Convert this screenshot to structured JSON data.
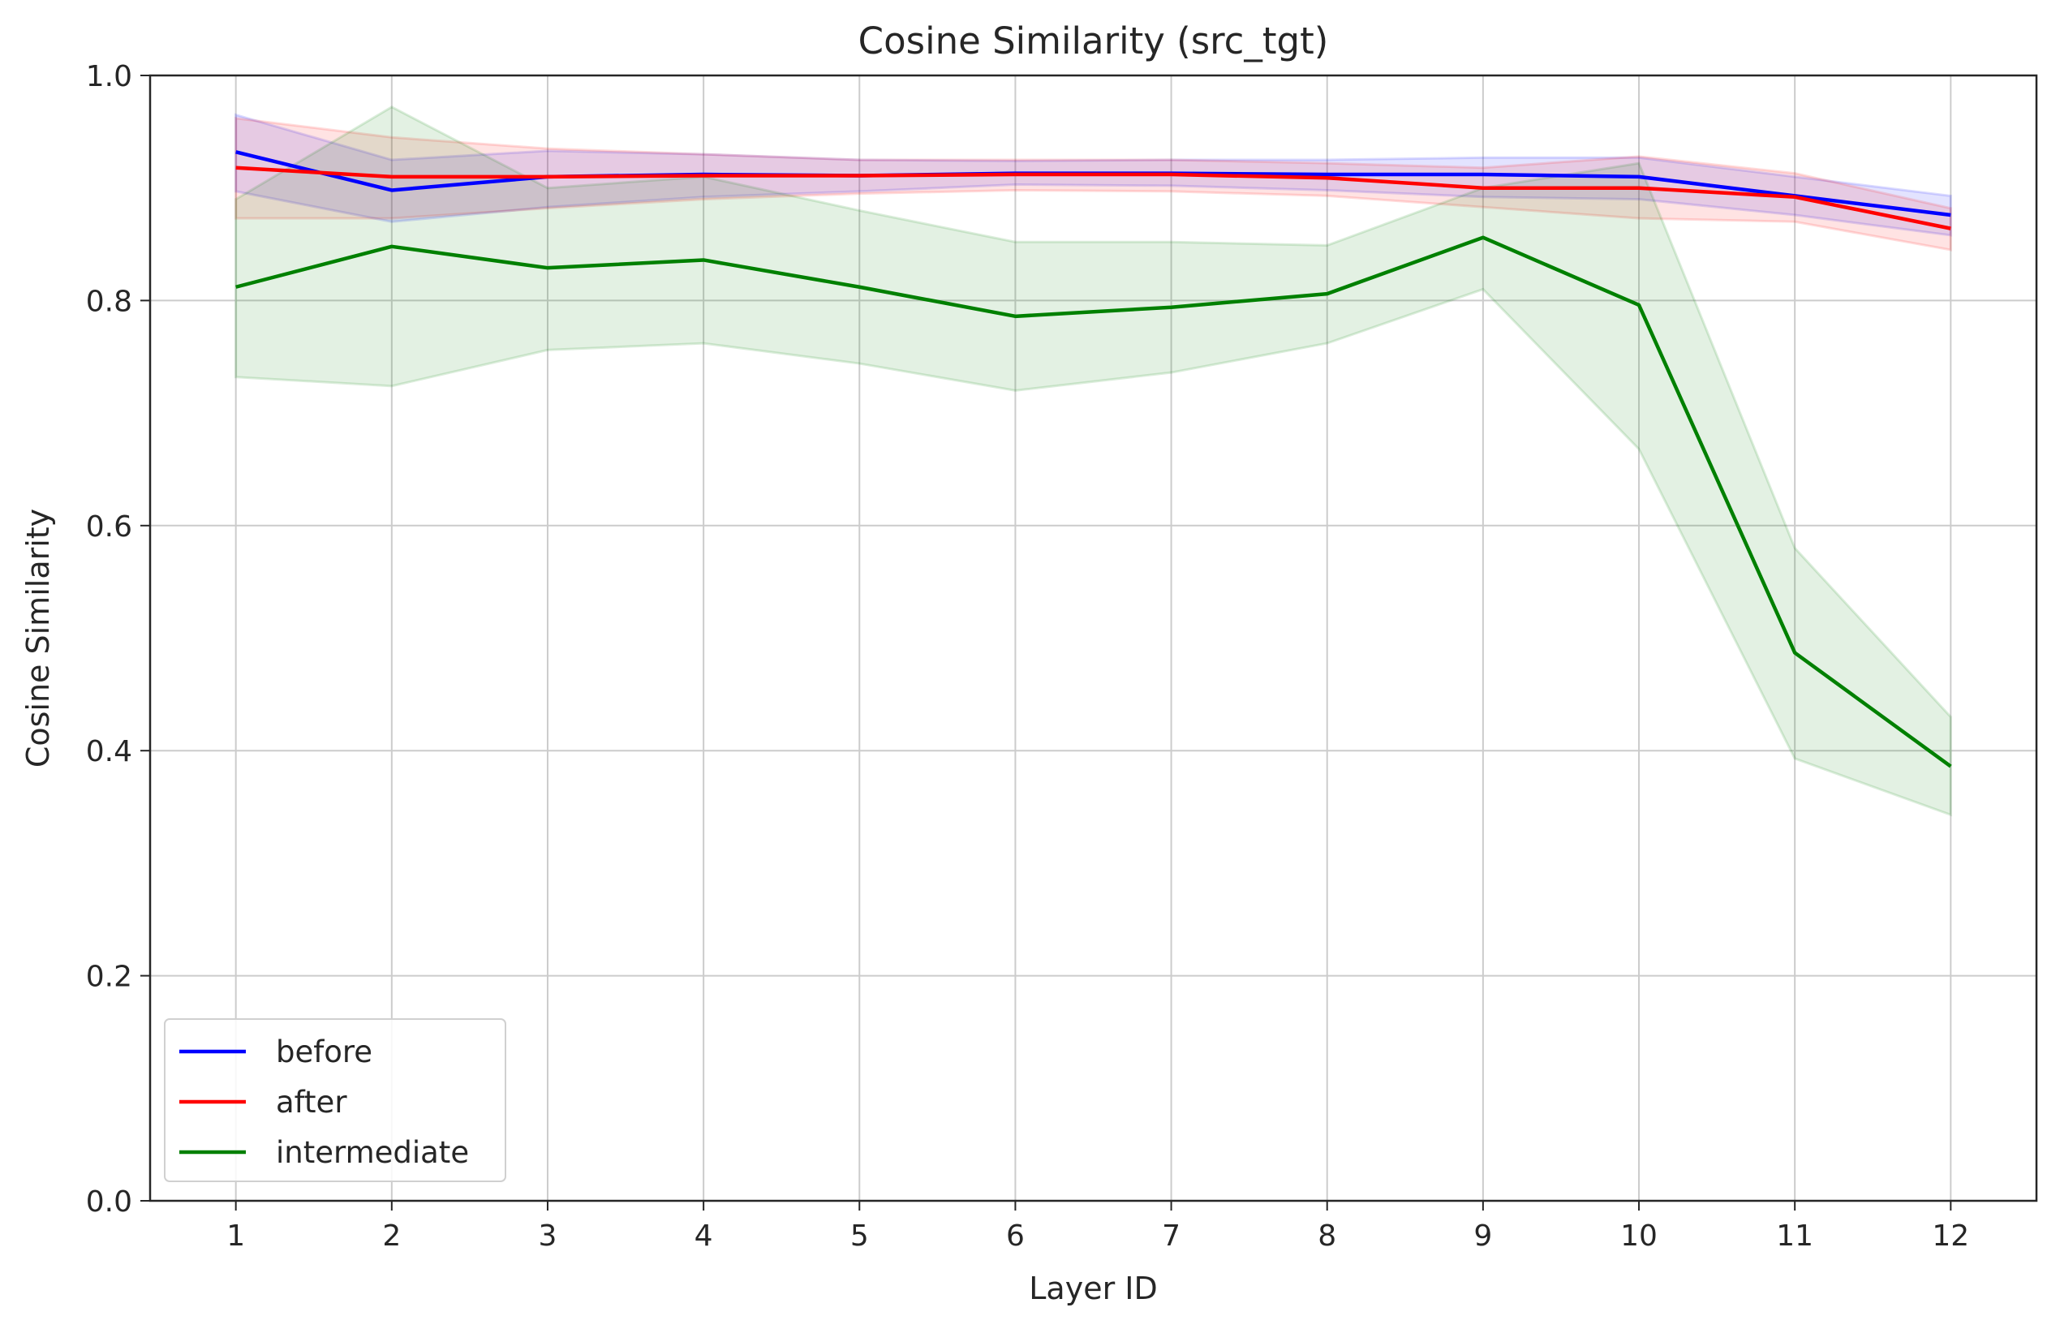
{
  "chart_data": {
    "type": "line",
    "title": "Cosine Similarity (src_tgt)",
    "xlabel": "Layer ID",
    "ylabel": "Cosine Similarity",
    "x": [
      1,
      2,
      3,
      4,
      5,
      6,
      7,
      8,
      9,
      10,
      11,
      12
    ],
    "xlim": [
      0.45,
      12.55
    ],
    "ylim": [
      0.0,
      1.0
    ],
    "yticks": [
      0.0,
      0.2,
      0.4,
      0.6,
      0.8,
      1.0
    ],
    "ytick_labels": [
      "0.0",
      "0.2",
      "0.4",
      "0.6",
      "0.8",
      "1.0"
    ],
    "xtick_labels": [
      "1",
      "2",
      "3",
      "4",
      "5",
      "6",
      "7",
      "8",
      "9",
      "10",
      "11",
      "12"
    ],
    "grid": true,
    "legend_position": "lower-left",
    "series": [
      {
        "name": "before",
        "color": "#0000ff",
        "values": [
          0.932,
          0.898,
          0.91,
          0.912,
          0.911,
          0.913,
          0.913,
          0.912,
          0.912,
          0.91,
          0.893,
          0.876
        ],
        "lower": [
          0.897,
          0.87,
          0.883,
          0.892,
          0.897,
          0.903,
          0.902,
          0.898,
          0.892,
          0.89,
          0.876,
          0.858
        ],
        "upper": [
          0.965,
          0.925,
          0.933,
          0.93,
          0.925,
          0.924,
          0.925,
          0.925,
          0.927,
          0.927,
          0.91,
          0.893
        ]
      },
      {
        "name": "after",
        "color": "#ff0000",
        "values": [
          0.918,
          0.91,
          0.91,
          0.911,
          0.911,
          0.912,
          0.912,
          0.909,
          0.9,
          0.9,
          0.892,
          0.864
        ],
        "lower": [
          0.873,
          0.873,
          0.882,
          0.89,
          0.895,
          0.898,
          0.897,
          0.893,
          0.883,
          0.873,
          0.87,
          0.845
        ],
        "upper": [
          0.962,
          0.945,
          0.935,
          0.93,
          0.925,
          0.925,
          0.925,
          0.922,
          0.918,
          0.928,
          0.913,
          0.882
        ]
      },
      {
        "name": "intermediate",
        "color": "#008000",
        "values": [
          0.812,
          0.848,
          0.829,
          0.836,
          0.812,
          0.786,
          0.794,
          0.806,
          0.856,
          0.796,
          0.487,
          0.386
        ],
        "lower": [
          0.732,
          0.724,
          0.756,
          0.762,
          0.744,
          0.72,
          0.736,
          0.762,
          0.81,
          0.668,
          0.393,
          0.343
        ],
        "upper": [
          0.89,
          0.972,
          0.9,
          0.91,
          0.88,
          0.852,
          0.852,
          0.849,
          0.9,
          0.922,
          0.58,
          0.43
        ]
      }
    ]
  }
}
